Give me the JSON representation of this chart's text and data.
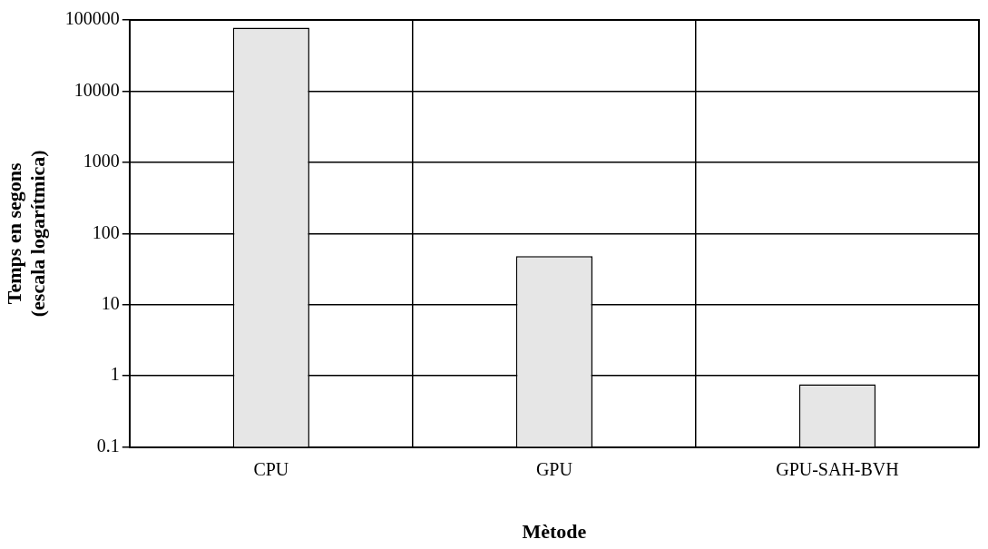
{
  "chart_data": {
    "type": "bar",
    "xlabel": "Mètode",
    "ylabel": "Temps en segons\n(escala logarítmica)",
    "categories": [
      "CPU",
      "GPU",
      "GPU-SAH-BVH"
    ],
    "values": [
      78000,
      48,
      0.76
    ],
    "color": "#e6e6e6",
    "log": "y",
    "ylim": [
      0.1,
      100000
    ],
    "yticks": [
      0.1,
      1,
      10,
      100,
      1000,
      10000,
      100000
    ],
    "grid": true
  }
}
